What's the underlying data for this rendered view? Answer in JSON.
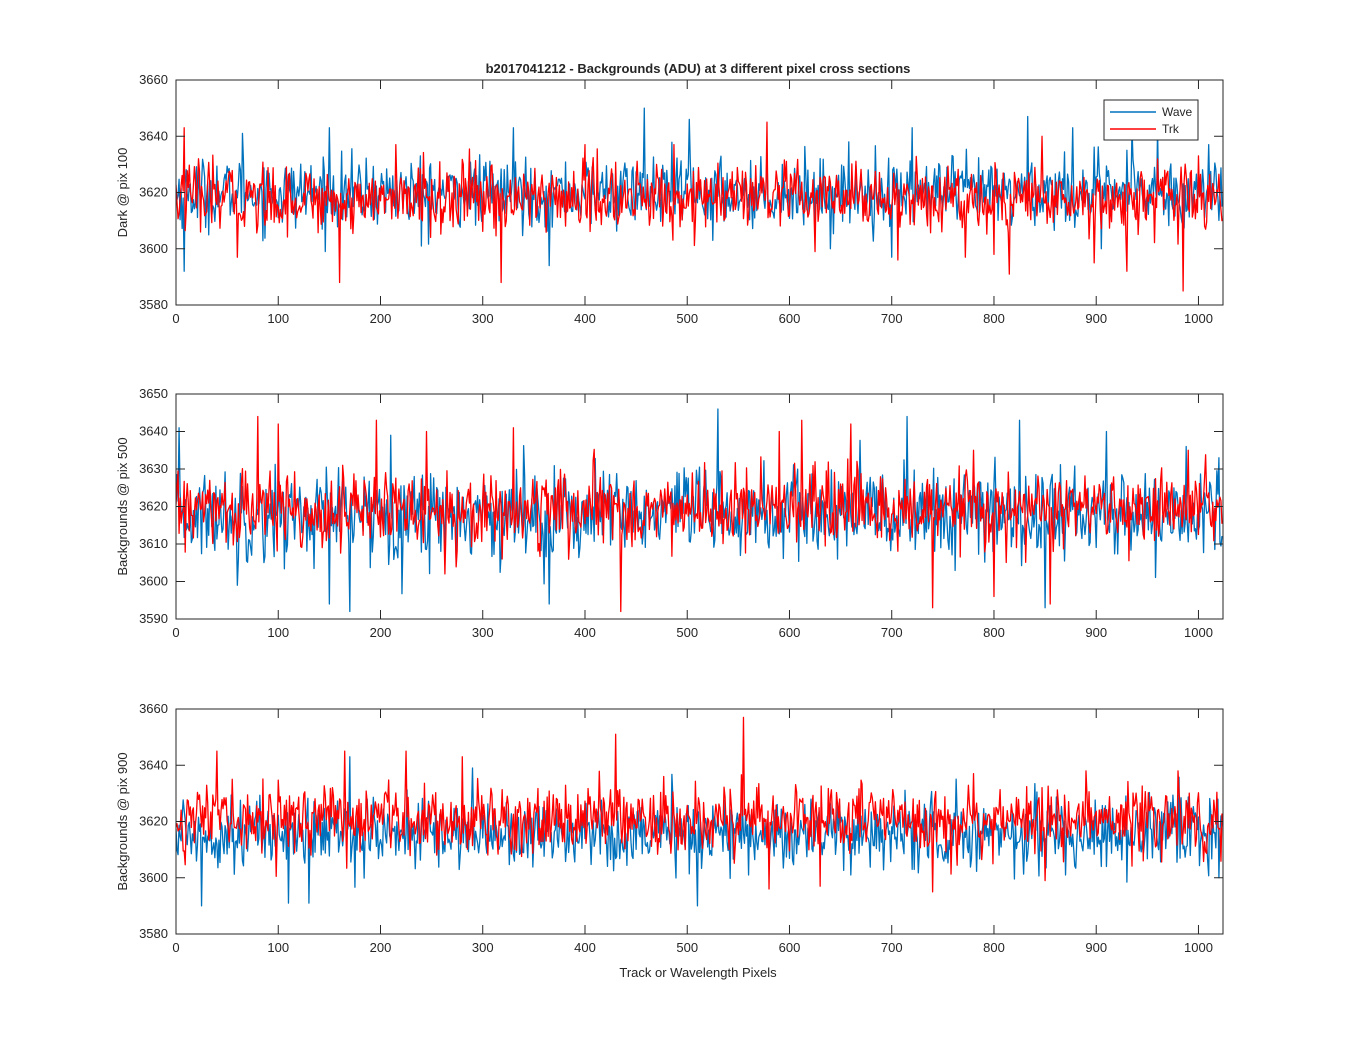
{
  "figure": {
    "title": "b2017041212 - Backgrounds (ADU) at 3 different pixel cross sections",
    "xlabel": "Track or Wavelength Pixels"
  },
  "legend": {
    "placement": "top-right of first panel",
    "entries": [
      {
        "name": "Wave",
        "color": "#0072BD"
      },
      {
        "name": "Trk",
        "color": "#FF0000"
      }
    ]
  },
  "colors": {
    "wave": "#0072BD",
    "trk": "#FF0000",
    "axis": "#262626"
  },
  "chart_data": [
    {
      "type": "line",
      "ylabel": "Dark @ pix 100",
      "xlim": [
        0,
        1024
      ],
      "ylim": [
        3580,
        3660
      ],
      "xticks": [
        "0",
        "100",
        "200",
        "300",
        "400",
        "500",
        "600",
        "700",
        "800",
        "900",
        "1000"
      ],
      "yticks": [
        "3580",
        "3600",
        "3620",
        "3640",
        "3660"
      ],
      "series": [
        {
          "name": "Wave",
          "n": 1024,
          "mean": 3620,
          "spread": 6,
          "spikes": [
            [
              8,
              3592
            ],
            [
              65,
              3641
            ],
            [
              150,
              3643
            ],
            [
              240,
              3601
            ],
            [
              330,
              3643
            ],
            [
              365,
              3594
            ],
            [
              458,
              3650
            ],
            [
              502,
              3646
            ],
            [
              525,
              3603
            ],
            [
              640,
              3600
            ],
            [
              700,
              3597
            ],
            [
              720,
              3643
            ],
            [
              833,
              3647
            ],
            [
              877,
              3643
            ],
            [
              905,
              3600
            ],
            [
              935,
              3643
            ],
            [
              960,
              3643
            ],
            [
              1010,
              3637
            ]
          ]
        },
        {
          "name": "Trk",
          "n": 1024,
          "mean": 3618,
          "spread": 6,
          "spikes": [
            [
              8,
              3643
            ],
            [
              60,
              3597
            ],
            [
              160,
              3588
            ],
            [
              215,
              3637
            ],
            [
              318,
              3588
            ],
            [
              400,
              3637
            ],
            [
              487,
              3637
            ],
            [
              578,
              3645
            ],
            [
              625,
              3599
            ],
            [
              706,
              3596
            ],
            [
              772,
              3597
            ],
            [
              800,
              3598
            ],
            [
              815,
              3591
            ],
            [
              847,
              3640
            ],
            [
              898,
              3595
            ],
            [
              930,
              3592
            ],
            [
              985,
              3585
            ],
            [
              1000,
              3633
            ]
          ]
        }
      ]
    },
    {
      "type": "line",
      "ylabel": "Backgrounds @ pix 500",
      "xlim": [
        0,
        1024
      ],
      "ylim": [
        3590,
        3650
      ],
      "xticks": [
        "0",
        "100",
        "200",
        "300",
        "400",
        "500",
        "600",
        "700",
        "800",
        "900",
        "1000"
      ],
      "yticks": [
        "3590",
        "3600",
        "3610",
        "3620",
        "3630",
        "3640",
        "3650"
      ],
      "series": [
        {
          "name": "Wave",
          "n": 1024,
          "mean": 3618,
          "spread": 6,
          "spikes": [
            [
              3,
              3641
            ],
            [
              60,
              3599
            ],
            [
              150,
              3594
            ],
            [
              170,
              3592
            ],
            [
              210,
              3639
            ],
            [
              365,
              3594
            ],
            [
              530,
              3646
            ],
            [
              715,
              3644
            ],
            [
              825,
              3643
            ],
            [
              850,
              3593
            ],
            [
              910,
              3640
            ],
            [
              1020,
              3633
            ]
          ]
        },
        {
          "name": "Trk",
          "n": 1024,
          "mean": 3619,
          "spread": 5,
          "spikes": [
            [
              80,
              3644
            ],
            [
              100,
              3642
            ],
            [
              196,
              3643
            ],
            [
              245,
              3640
            ],
            [
              330,
              3641
            ],
            [
              435,
              3592
            ],
            [
              590,
              3640
            ],
            [
              612,
              3643
            ],
            [
              660,
              3642
            ],
            [
              740,
              3593
            ],
            [
              780,
              3635
            ],
            [
              800,
              3596
            ],
            [
              855,
              3594
            ],
            [
              990,
              3635
            ]
          ]
        }
      ]
    },
    {
      "type": "line",
      "ylabel": "Backgrounds @ pix 900",
      "xlim": [
        0,
        1024
      ],
      "ylim": [
        3580,
        3660
      ],
      "xticks": [
        "0",
        "100",
        "200",
        "300",
        "400",
        "500",
        "600",
        "700",
        "800",
        "900",
        "1000"
      ],
      "yticks": [
        "3580",
        "3600",
        "3620",
        "3640",
        "3660"
      ],
      "series": [
        {
          "name": "Wave",
          "n": 1024,
          "mean": 3616,
          "spread": 6,
          "spikes": [
            [
              25,
              3590
            ],
            [
              110,
              3591
            ],
            [
              130,
              3591
            ],
            [
              170,
              3643
            ],
            [
              290,
              3639
            ],
            [
              510,
              3590
            ],
            [
              560,
              3601
            ],
            [
              660,
              3601
            ],
            [
              720,
              3603
            ],
            [
              870,
              3601
            ],
            [
              1020,
              3600
            ]
          ]
        },
        {
          "name": "Trk",
          "n": 1024,
          "mean": 3621,
          "spread": 6,
          "spikes": [
            [
              40,
              3645
            ],
            [
              165,
              3645
            ],
            [
              225,
              3645
            ],
            [
              280,
              3643
            ],
            [
              430,
              3651
            ],
            [
              555,
              3657
            ],
            [
              580,
              3596
            ],
            [
              630,
              3597
            ],
            [
              740,
              3595
            ],
            [
              780,
              3637
            ],
            [
              850,
              3599
            ],
            [
              890,
              3638
            ],
            [
              980,
              3638
            ]
          ]
        }
      ]
    }
  ]
}
